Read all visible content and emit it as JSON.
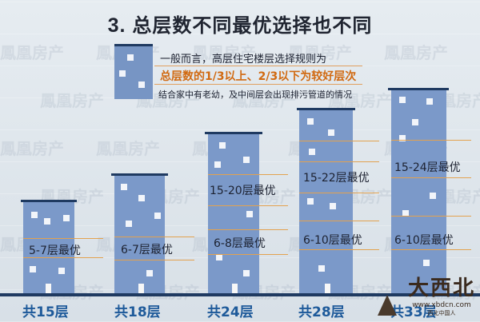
{
  "title": {
    "number": "3.",
    "text": "总层数不同最优选择也不同"
  },
  "intro": {
    "line1": "一般而言，高层住宅楼层选择规则为",
    "line2": "总层数的1/3以上、2/3以下为较好层次",
    "line3": "结合家中有老幼，及中间层会出现排污管道的情况"
  },
  "watermark_text": "鳳凰房产",
  "buildings": [
    {
      "total": "共15层",
      "best": [
        "5-7层最优"
      ]
    },
    {
      "total": "共18层",
      "best": [
        "6-7层最优"
      ]
    },
    {
      "total": "共24层",
      "best": [
        "15-20层最优",
        "6-8层最优"
      ]
    },
    {
      "total": "共28层",
      "best": [
        "15-22层最优",
        "6-10层最优"
      ]
    },
    {
      "total": "共33层",
      "best": [
        "15-24层最优",
        "6-10层最优"
      ]
    }
  ],
  "logo": {
    "mark": "大西北",
    "site": "www.xbdcn.com",
    "sub": "西北中国人"
  },
  "colors": {
    "building": "#7b99c9",
    "roof": "#1f3a61",
    "accent": "#d16a12",
    "total_label": "#1e5a9a"
  }
}
